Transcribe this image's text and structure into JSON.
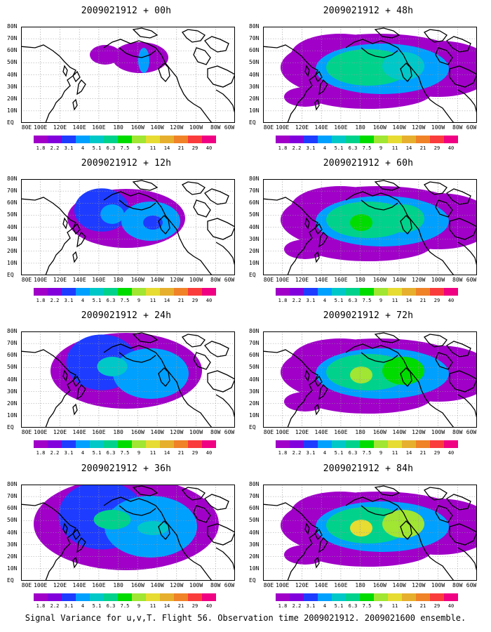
{
  "colors": {
    "scale": [
      "#a000c8",
      "#8200dc",
      "#1e3cff",
      "#00a0ff",
      "#00c8c8",
      "#00d28c",
      "#00dc00",
      "#a0e632",
      "#e6dc32",
      "#e6af2d",
      "#f08228",
      "#fa3c3c",
      "#f00082"
    ],
    "coast": "#000000",
    "grid": "#9a9a9a"
  },
  "panels": [
    {
      "title": "2009021912 + 00h",
      "level": 1
    },
    {
      "title": "2009021912 + 48h",
      "level": 5
    },
    {
      "title": "2009021912 + 12h",
      "level": 2
    },
    {
      "title": "2009021912 + 60h",
      "level": 6
    },
    {
      "title": "2009021912 + 24h",
      "level": 3
    },
    {
      "title": "2009021912 + 72h",
      "level": 7
    },
    {
      "title": "2009021912 + 36h",
      "level": 4
    },
    {
      "title": "2009021912 + 84h",
      "level": 8
    }
  ],
  "axes": {
    "lat_labels": [
      "80N",
      "70N",
      "60N",
      "50N",
      "40N",
      "30N",
      "20N",
      "10N",
      "EQ"
    ],
    "lon_labels": [
      "80E",
      "100E",
      "120E",
      "140E",
      "160E",
      "180",
      "160W",
      "140W",
      "120W",
      "100W",
      "80W",
      "60W"
    ]
  },
  "colorbar_labels": [
    "1.8",
    "2.2",
    "3.1",
    "4",
    "5.1",
    "6.3",
    "7.5",
    "9",
    "11",
    "14",
    "21",
    "29",
    "40"
  ],
  "caption": "Signal Variance for u,v,T. Flight 56. Observation time 2009021912. 2009021600 ensemble."
}
